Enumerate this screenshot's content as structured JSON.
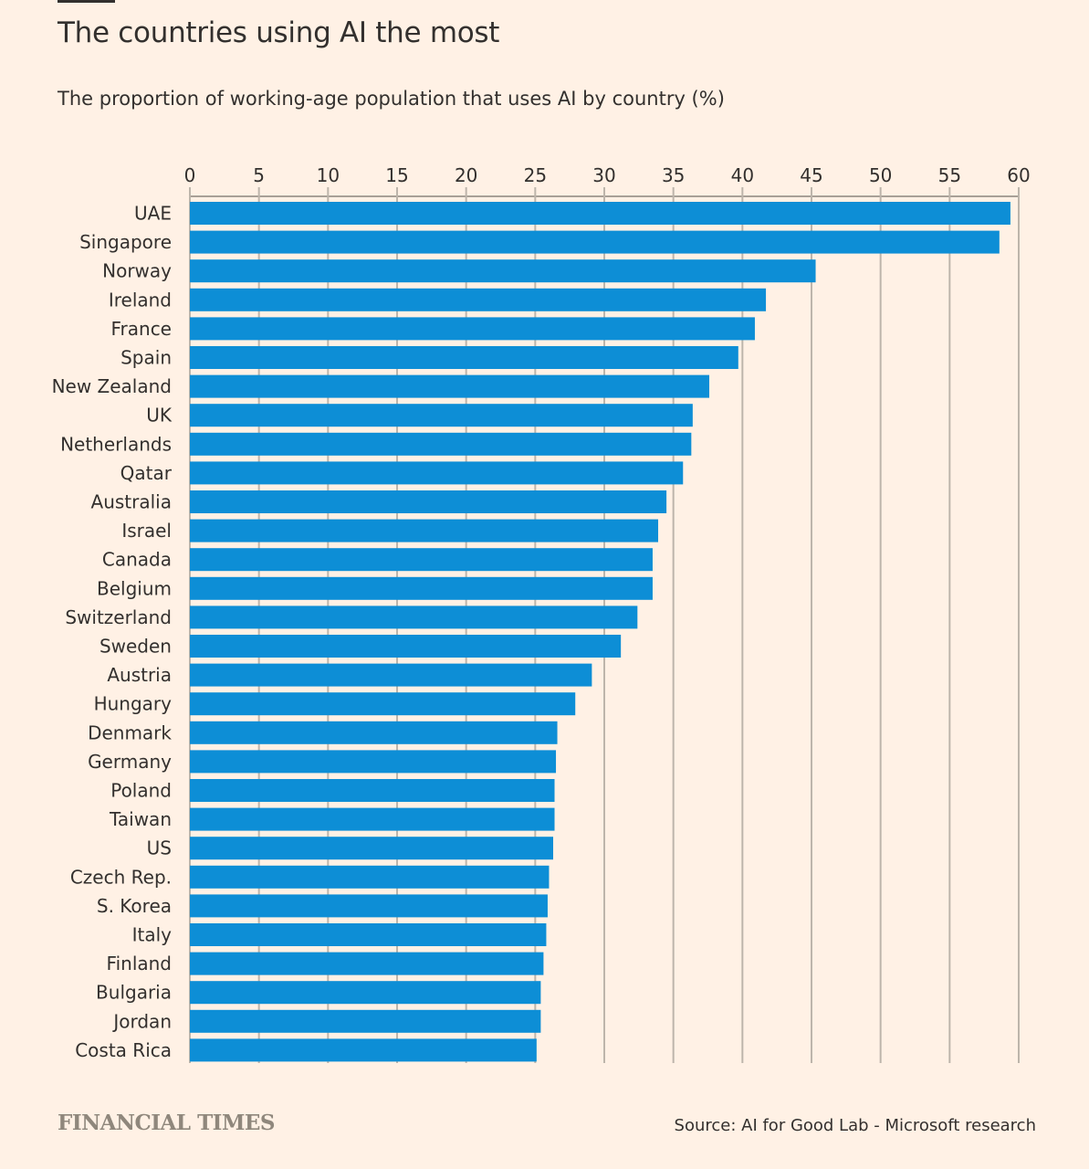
{
  "header": {
    "title": "The countries using AI the most",
    "subtitle": "The proportion of working-age population that uses AI by country (%)"
  },
  "footer": {
    "logo": "FINANCIAL TIMES",
    "source": "Source: AI for Good Lab - Microsoft research"
  },
  "colors": {
    "background": "#FFF1E5",
    "bar": "#0D8ED6",
    "gridline": "#BDB5AB",
    "text": "#33302E"
  },
  "chart_data": {
    "type": "bar",
    "orientation": "horizontal",
    "title": "The countries using AI the most",
    "subtitle": "The proportion of working-age population that uses AI by country (%)",
    "xlabel": "",
    "ylabel": "",
    "xlim": [
      0,
      60
    ],
    "xticks": [
      0,
      5,
      10,
      15,
      20,
      25,
      30,
      35,
      40,
      45,
      50,
      55,
      60
    ],
    "grid": true,
    "axis_position": "top",
    "categories": [
      "UAE",
      "Singapore",
      "Norway",
      "Ireland",
      "France",
      "Spain",
      "New Zealand",
      "UK",
      "Netherlands",
      "Qatar",
      "Australia",
      "Israel",
      "Canada",
      "Belgium",
      "Switzerland",
      "Sweden",
      "Austria",
      "Hungary",
      "Denmark",
      "Germany",
      "Poland",
      "Taiwan",
      "US",
      "Czech Rep.",
      "S. Korea",
      "Italy",
      "Finland",
      "Bulgaria",
      "Jordan",
      "Costa Rica"
    ],
    "values": [
      59.4,
      58.6,
      45.3,
      41.7,
      40.9,
      39.7,
      37.6,
      36.4,
      36.3,
      35.7,
      34.5,
      33.9,
      33.5,
      33.5,
      32.4,
      31.2,
      29.1,
      27.9,
      26.6,
      26.5,
      26.4,
      26.4,
      26.3,
      26.0,
      25.9,
      25.8,
      25.6,
      25.4,
      25.4,
      25.1
    ]
  }
}
